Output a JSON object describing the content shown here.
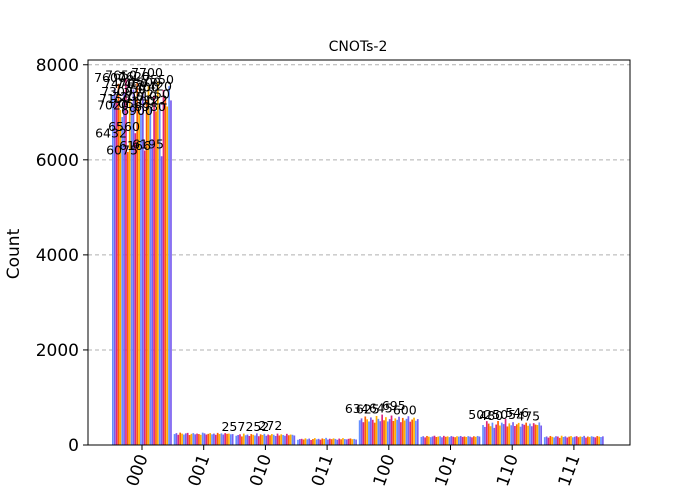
{
  "chart_data": {
    "type": "bar",
    "title": "CNOTs-2",
    "xlabel": "",
    "ylabel": "Count",
    "categories": [
      "000",
      "001",
      "010",
      "011",
      "100",
      "101",
      "110",
      "111"
    ],
    "ylim": [
      0,
      8100
    ],
    "yticks": [
      0,
      2000,
      4000,
      6000,
      8000
    ],
    "grid": "y-dashed",
    "legend": "none",
    "series_count": 32,
    "colors": [
      "#648fff",
      "#785ef0",
      "#dc267f",
      "#fe6100",
      "#ffb000"
    ],
    "group_values": [
      [
        7350,
        7500,
        7210,
        7600,
        7050,
        6900,
        7420,
        7700,
        6166,
        7300,
        7150,
        7480,
        6560,
        7620,
        7050,
        6980,
        7400,
        6195,
        7250,
        7550,
        7100,
        6432,
        7350,
        7020,
        7650,
        7200,
        6075,
        7470,
        7300,
        7122,
        7550,
        7250
      ],
      [
        230,
        250,
        215,
        260,
        240,
        220,
        245,
        255,
        210,
        235,
        250,
        225,
        240,
        230,
        215,
        260,
        245,
        220,
        235,
        250,
        225,
        240,
        215,
        255,
        230,
        245,
        220,
        250,
        235,
        240,
        225,
        230
      ],
      [
        195,
        210,
        225,
        180,
        240,
        205,
        220,
        190,
        230,
        215,
        200,
        245,
        185,
        225,
        210,
        235,
        195,
        220,
        205,
        230,
        215,
        190,
        240,
        200,
        225,
        210,
        195,
        235,
        205,
        220,
        215,
        200
      ],
      [
        110,
        125,
        130,
        115,
        140,
        120,
        135,
        105,
        125,
        145,
        118,
        130,
        112,
        138,
        126,
        150,
        115,
        132,
        122,
        140,
        128,
        110,
        135,
        120,
        145,
        125,
        118,
        130,
        138,
        122,
        128,
        115
      ],
      [
        520,
        560,
        480,
        600,
        540,
        495,
        580,
        530,
        470,
        610,
        550,
        500,
        640,
        520,
        585,
        495,
        545,
        620,
        505,
        560,
        530,
        595,
        480,
        570,
        515,
        550,
        605,
        490,
        535,
        575,
        510,
        545
      ],
      [
        170,
        185,
        160,
        190,
        175,
        165,
        180,
        195,
        168,
        178,
        186,
        162,
        192,
        172,
        182,
        166,
        188,
        174,
        164,
        184,
        176,
        190,
        170,
        180,
        168,
        186,
        176,
        162,
        184,
        172,
        190,
        178
      ],
      [
        420,
        380,
        502,
        450,
        395,
        470,
        360,
        430,
        505,
        410,
        470,
        440,
        546,
        390,
        455,
        415,
        480,
        400,
        435,
        465,
        385,
        445,
        425,
        470,
        405,
        450,
        395,
        460,
        430,
        420,
        475,
        410
      ],
      [
        165,
        180,
        155,
        190,
        172,
        160,
        185,
        178,
        150,
        195,
        168,
        182,
        158,
        176,
        188,
        162,
        174,
        186,
        164,
        180,
        170,
        192,
        156,
        178,
        166,
        184,
        172,
        160,
        188,
        176,
        168,
        182
      ]
    ],
    "value_labels": [
      [
        "7600",
        "7700",
        "7620",
        "7650",
        "7550",
        "7500",
        "7480",
        "7470",
        "7420",
        "7400",
        "7350",
        "7300",
        "7250",
        "7210",
        "7200",
        "7150",
        "7122",
        "7100",
        "7050",
        "7020",
        "6980",
        "6900",
        "6560",
        "6432",
        "6195",
        "6166",
        "6075"
      ],
      [],
      [
        "257",
        "272",
        "252"
      ],
      [],
      [
        "634",
        "695",
        "645",
        "625",
        "600"
      ],
      [],
      [
        "502",
        "546",
        "505",
        "480",
        "475"
      ],
      []
    ]
  }
}
